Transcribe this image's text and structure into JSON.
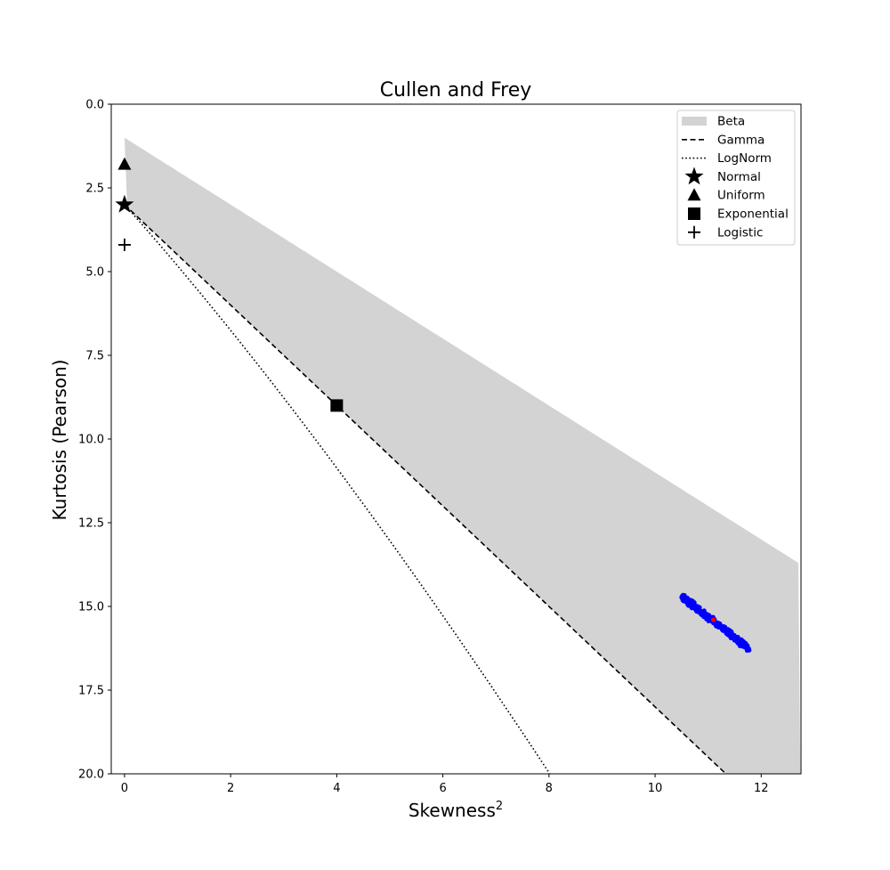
{
  "chart_data": {
    "type": "scatter",
    "title": "Cullen and Frey",
    "xlabel": "Skewness",
    "xlabel_superscript": "2",
    "ylabel": "Kurtosis (Pearson)",
    "xlim": [
      -0.25,
      12.75
    ],
    "ylim": [
      20.0,
      0.0
    ],
    "y_inverted": true,
    "grid": false,
    "legend_placement": "top-right",
    "x_ticks": [
      0,
      2,
      4,
      6,
      8,
      10,
      12
    ],
    "y_ticks": [
      0.0,
      2.5,
      5.0,
      7.5,
      10.0,
      12.5,
      15.0,
      17.5,
      20.0
    ],
    "y_tick_labels": [
      "0.0",
      "2.5",
      "5.0",
      "7.5",
      "10.0",
      "12.5",
      "15.0",
      "17.5",
      "20.0"
    ],
    "legend": [
      "Beta",
      "Gamma",
      "LogNorm",
      "Normal",
      "Uniform",
      "Exponential",
      "Logistic"
    ],
    "regions": [
      {
        "name": "Beta",
        "color": "#d3d3d3",
        "upper_bound": "kurtosis = skewness² + 1",
        "lower_bound": "kurtosis = 1.5·skewness² + 3"
      }
    ],
    "lines": [
      {
        "name": "Gamma",
        "style": "dashed",
        "color": "#000000",
        "formula": "kurtosis = 1.5·skewness² + 3",
        "x_range": [
          0,
          12.75
        ]
      },
      {
        "name": "LogNorm",
        "style": "dotted",
        "color": "#000000",
        "formula": "lognormal curve",
        "x_range": [
          0,
          8.1
        ]
      }
    ],
    "points": [
      {
        "name": "Normal",
        "marker": "star",
        "x": 0,
        "y": 3.0,
        "color": "#000000"
      },
      {
        "name": "Uniform",
        "marker": "triangle",
        "x": 0,
        "y": 1.8,
        "color": "#000000"
      },
      {
        "name": "Exponential",
        "marker": "square",
        "x": 4,
        "y": 9.0,
        "color": "#000000"
      },
      {
        "name": "Logistic",
        "marker": "plus",
        "x": 0,
        "y": 4.2,
        "color": "#000000"
      }
    ],
    "bootstrap": {
      "color": "#0000ff",
      "x_range": [
        10.5,
        11.75
      ],
      "y_range": [
        14.7,
        16.25
      ]
    },
    "observation": {
      "x": 11.1,
      "y": 15.4,
      "color": "#ff0000"
    }
  }
}
